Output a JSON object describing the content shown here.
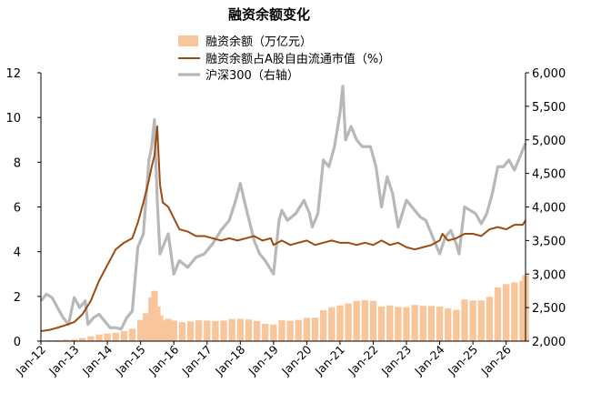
{
  "chart_data": {
    "type": "combo",
    "title": "融资余额变化",
    "legend_position": "top-center",
    "left_axis": {
      "ylim": [
        0,
        12
      ],
      "ticks": [
        "0",
        "2",
        "4",
        "6",
        "8",
        "10",
        "12"
      ]
    },
    "right_axis": {
      "ylim": [
        2000,
        6000
      ],
      "ticks": [
        "2,000",
        "2,500",
        "3,000",
        "3,500",
        "4,000",
        "4,500",
        "5,000",
        "5,500",
        "6,000"
      ]
    },
    "x_axis": {
      "type": "date",
      "start": "2012-01",
      "end": "2026-08",
      "tick_labels": [
        "Jan-12",
        "Jan-13",
        "Jan-14",
        "Jan-15",
        "Jan-16",
        "Jan-17",
        "Jan-18",
        "Jan-19",
        "Jan-20",
        "Jan-21",
        "Jan-22",
        "Jan-23",
        "Jan-24",
        "Jan-25",
        "Jan-26"
      ]
    },
    "grid": false,
    "series": [
      {
        "name": "融资余额（万亿元）",
        "type": "bar",
        "axis": "left",
        "color": "#f9c59a",
        "points": [
          [
            "2012-01",
            0.03
          ],
          [
            "2012-04",
            0.04
          ],
          [
            "2012-07",
            0.05
          ],
          [
            "2012-10",
            0.07
          ],
          [
            "2013-01",
            0.08
          ],
          [
            "2013-04",
            0.14
          ],
          [
            "2013-07",
            0.22
          ],
          [
            "2013-10",
            0.3
          ],
          [
            "2014-01",
            0.34
          ],
          [
            "2014-04",
            0.38
          ],
          [
            "2014-07",
            0.45
          ],
          [
            "2014-10",
            0.55
          ],
          [
            "2015-01",
            0.95
          ],
          [
            "2015-03",
            1.25
          ],
          [
            "2015-05",
            1.95
          ],
          [
            "2015-06",
            2.25
          ],
          [
            "2015-07",
            1.55
          ],
          [
            "2015-08",
            1.15
          ],
          [
            "2015-09",
            0.92
          ],
          [
            "2015-11",
            1.0
          ],
          [
            "2016-01",
            0.92
          ],
          [
            "2016-04",
            0.85
          ],
          [
            "2016-07",
            0.88
          ],
          [
            "2016-10",
            0.93
          ],
          [
            "2017-01",
            0.92
          ],
          [
            "2017-04",
            0.9
          ],
          [
            "2017-07",
            0.92
          ],
          [
            "2017-10",
            0.99
          ],
          [
            "2018-01",
            1.0
          ],
          [
            "2018-04",
            0.97
          ],
          [
            "2018-07",
            0.9
          ],
          [
            "2018-10",
            0.77
          ],
          [
            "2019-01",
            0.74
          ],
          [
            "2019-04",
            0.93
          ],
          [
            "2019-07",
            0.91
          ],
          [
            "2019-10",
            0.95
          ],
          [
            "2020-01",
            1.04
          ],
          [
            "2020-04",
            1.05
          ],
          [
            "2020-07",
            1.38
          ],
          [
            "2020-10",
            1.52
          ],
          [
            "2021-01",
            1.6
          ],
          [
            "2021-04",
            1.68
          ],
          [
            "2021-07",
            1.8
          ],
          [
            "2021-10",
            1.83
          ],
          [
            "2022-01",
            1.8
          ],
          [
            "2022-04",
            1.55
          ],
          [
            "2022-07",
            1.6
          ],
          [
            "2022-10",
            1.53
          ],
          [
            "2023-01",
            1.52
          ],
          [
            "2023-04",
            1.62
          ],
          [
            "2023-07",
            1.58
          ],
          [
            "2023-10",
            1.57
          ],
          [
            "2024-01",
            1.55
          ],
          [
            "2024-04",
            1.47
          ],
          [
            "2024-07",
            1.4
          ],
          [
            "2024-10",
            1.86
          ],
          [
            "2025-01",
            1.82
          ],
          [
            "2025-04",
            1.82
          ],
          [
            "2025-07",
            1.98
          ],
          [
            "2025-10",
            2.4
          ],
          [
            "2026-01",
            2.55
          ],
          [
            "2026-04",
            2.62
          ],
          [
            "2026-07",
            2.7
          ],
          [
            "2026-08",
            2.95
          ]
        ]
      },
      {
        "name": "融资余额占A股自由流通市值（%）",
        "type": "line",
        "axis": "left",
        "color": "#9c4a10",
        "points": [
          [
            "2012-01",
            0.45
          ],
          [
            "2012-04",
            0.5
          ],
          [
            "2012-07",
            0.6
          ],
          [
            "2012-10",
            0.72
          ],
          [
            "2013-01",
            0.85
          ],
          [
            "2013-04",
            1.2
          ],
          [
            "2013-07",
            1.8
          ],
          [
            "2013-10",
            2.7
          ],
          [
            "2014-01",
            3.4
          ],
          [
            "2014-04",
            4.1
          ],
          [
            "2014-07",
            4.4
          ],
          [
            "2014-10",
            4.6
          ],
          [
            "2014-12",
            5.3
          ],
          [
            "2015-02",
            6.2
          ],
          [
            "2015-04",
            7.2
          ],
          [
            "2015-05",
            7.8
          ],
          [
            "2015-06",
            8.3
          ],
          [
            "2015-07",
            9.6
          ],
          [
            "2015-08",
            7.0
          ],
          [
            "2015-09",
            6.2
          ],
          [
            "2015-11",
            6.0
          ],
          [
            "2016-01",
            5.5
          ],
          [
            "2016-03",
            5.0
          ],
          [
            "2016-06",
            4.9
          ],
          [
            "2016-09",
            4.7
          ],
          [
            "2016-12",
            4.7
          ],
          [
            "2017-03",
            4.6
          ],
          [
            "2017-06",
            4.5
          ],
          [
            "2017-09",
            4.6
          ],
          [
            "2017-12",
            4.5
          ],
          [
            "2018-03",
            4.6
          ],
          [
            "2018-06",
            4.7
          ],
          [
            "2018-09",
            4.5
          ],
          [
            "2018-12",
            4.6
          ],
          [
            "2019-01",
            4.3
          ],
          [
            "2019-04",
            4.5
          ],
          [
            "2019-07",
            4.3
          ],
          [
            "2019-10",
            4.4
          ],
          [
            "2020-01",
            4.5
          ],
          [
            "2020-04",
            4.3
          ],
          [
            "2020-07",
            4.4
          ],
          [
            "2020-10",
            4.5
          ],
          [
            "2021-01",
            4.4
          ],
          [
            "2021-04",
            4.4
          ],
          [
            "2021-07",
            4.3
          ],
          [
            "2021-10",
            4.4
          ],
          [
            "2022-01",
            4.3
          ],
          [
            "2022-04",
            4.5
          ],
          [
            "2022-07",
            4.3
          ],
          [
            "2022-10",
            4.4
          ],
          [
            "2023-01",
            4.2
          ],
          [
            "2023-04",
            4.1
          ],
          [
            "2023-07",
            4.2
          ],
          [
            "2023-10",
            4.3
          ],
          [
            "2024-01",
            4.5
          ],
          [
            "2024-02",
            4.8
          ],
          [
            "2024-04",
            4.5
          ],
          [
            "2024-07",
            4.6
          ],
          [
            "2024-10",
            4.8
          ],
          [
            "2025-01",
            4.8
          ],
          [
            "2025-04",
            4.7
          ],
          [
            "2025-07",
            5.0
          ],
          [
            "2025-10",
            5.1
          ],
          [
            "2026-01",
            5.0
          ],
          [
            "2026-04",
            5.2
          ],
          [
            "2026-07",
            5.2
          ],
          [
            "2026-08",
            5.4
          ]
        ]
      },
      {
        "name": "沪深300（右轴）",
        "type": "line",
        "axis": "right",
        "color": "#b8b8b8",
        "points": [
          [
            "2012-01",
            2600
          ],
          [
            "2012-03",
            2700
          ],
          [
            "2012-05",
            2650
          ],
          [
            "2012-07",
            2500
          ],
          [
            "2012-09",
            2350
          ],
          [
            "2012-11",
            2250
          ],
          [
            "2013-01",
            2650
          ],
          [
            "2013-03",
            2500
          ],
          [
            "2013-05",
            2600
          ],
          [
            "2013-06",
            2250
          ],
          [
            "2013-08",
            2350
          ],
          [
            "2013-10",
            2400
          ],
          [
            "2013-12",
            2300
          ],
          [
            "2014-02",
            2200
          ],
          [
            "2014-04",
            2200
          ],
          [
            "2014-06",
            2180
          ],
          [
            "2014-08",
            2350
          ],
          [
            "2014-10",
            2450
          ],
          [
            "2014-12",
            3400
          ],
          [
            "2015-02",
            3600
          ],
          [
            "2015-04",
            4700
          ],
          [
            "2015-05",
            4900
          ],
          [
            "2015-06",
            5300
          ],
          [
            "2015-07",
            4100
          ],
          [
            "2015-08",
            3300
          ],
          [
            "2015-10",
            3500
          ],
          [
            "2015-11",
            3600
          ],
          [
            "2016-01",
            3000
          ],
          [
            "2016-03",
            3200
          ],
          [
            "2016-06",
            3100
          ],
          [
            "2016-09",
            3250
          ],
          [
            "2016-12",
            3300
          ],
          [
            "2017-03",
            3450
          ],
          [
            "2017-06",
            3650
          ],
          [
            "2017-09",
            3800
          ],
          [
            "2017-11",
            4050
          ],
          [
            "2018-01",
            4350
          ],
          [
            "2018-03",
            4000
          ],
          [
            "2018-06",
            3500
          ],
          [
            "2018-08",
            3300
          ],
          [
            "2018-10",
            3200
          ],
          [
            "2019-01",
            3000
          ],
          [
            "2019-03",
            3800
          ],
          [
            "2019-04",
            3950
          ],
          [
            "2019-06",
            3800
          ],
          [
            "2019-09",
            3900
          ],
          [
            "2019-12",
            4100
          ],
          [
            "2020-02",
            3900
          ],
          [
            "2020-03",
            3700
          ],
          [
            "2020-05",
            3900
          ],
          [
            "2020-07",
            4700
          ],
          [
            "2020-09",
            4600
          ],
          [
            "2020-11",
            4900
          ],
          [
            "2021-01",
            5400
          ],
          [
            "2021-02",
            5800
          ],
          [
            "2021-03",
            5000
          ],
          [
            "2021-05",
            5200
          ],
          [
            "2021-07",
            5000
          ],
          [
            "2021-09",
            4900
          ],
          [
            "2021-12",
            4900
          ],
          [
            "2022-02",
            4600
          ],
          [
            "2022-04",
            4000
          ],
          [
            "2022-06",
            4450
          ],
          [
            "2022-08",
            4200
          ],
          [
            "2022-10",
            3700
          ],
          [
            "2023-01",
            4100
          ],
          [
            "2023-03",
            4000
          ],
          [
            "2023-06",
            3850
          ],
          [
            "2023-08",
            3800
          ],
          [
            "2023-10",
            3600
          ],
          [
            "2023-12",
            3400
          ],
          [
            "2024-01",
            3300
          ],
          [
            "2024-03",
            3550
          ],
          [
            "2024-05",
            3650
          ],
          [
            "2024-07",
            3450
          ],
          [
            "2024-08",
            3300
          ],
          [
            "2024-10",
            4000
          ],
          [
            "2024-12",
            3950
          ],
          [
            "2025-02",
            3900
          ],
          [
            "2025-04",
            3750
          ],
          [
            "2025-06",
            3900
          ],
          [
            "2025-08",
            4200
          ],
          [
            "2025-10",
            4600
          ],
          [
            "2025-12",
            4600
          ],
          [
            "2026-02",
            4700
          ],
          [
            "2026-04",
            4550
          ],
          [
            "2026-06",
            4750
          ],
          [
            "2026-08",
            4950
          ]
        ]
      }
    ]
  }
}
